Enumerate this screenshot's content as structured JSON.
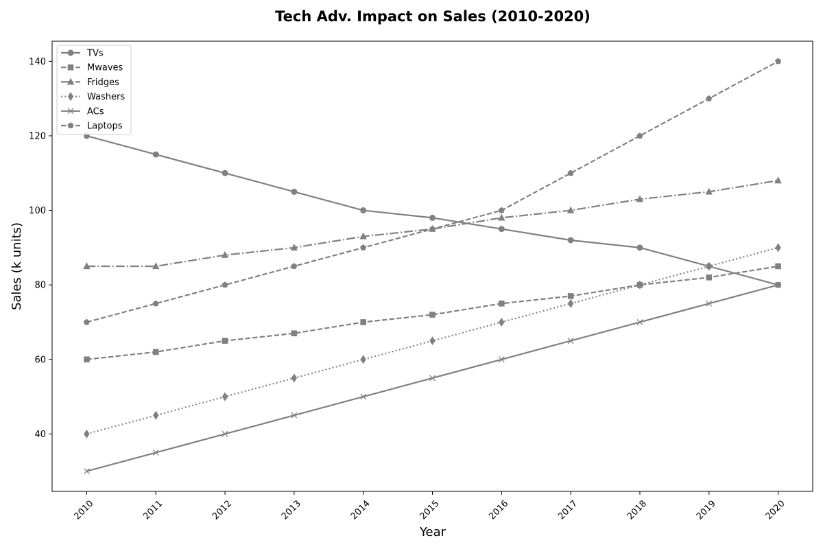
{
  "chart_data": {
    "type": "line",
    "title": "Tech Adv. Impact on Sales (2010-2020)",
    "xlabel": "Year",
    "ylabel": "Sales (k units)",
    "x": [
      2010,
      2011,
      2012,
      2013,
      2014,
      2015,
      2016,
      2017,
      2018,
      2019,
      2020
    ],
    "xlim": [
      2009.5,
      2020.5
    ],
    "ylim": [
      24.6,
      145.4
    ],
    "yticks": [
      40,
      60,
      80,
      100,
      120,
      140
    ],
    "grid": false,
    "legend_position": "top-left",
    "series": [
      {
        "name": "TVs",
        "values": [
          120,
          115,
          110,
          105,
          100,
          98,
          95,
          92,
          90,
          85,
          80
        ],
        "color": "#808080",
        "linestyle": "solid",
        "marker": "circle"
      },
      {
        "name": "Mwaves",
        "values": [
          60,
          62,
          65,
          67,
          70,
          72,
          75,
          77,
          80,
          82,
          85
        ],
        "color": "#808080",
        "linestyle": "dashed",
        "marker": "square"
      },
      {
        "name": "Fridges",
        "values": [
          85,
          85,
          88,
          90,
          93,
          95,
          98,
          100,
          103,
          105,
          108
        ],
        "color": "#808080",
        "linestyle": "dashdot",
        "marker": "triangle"
      },
      {
        "name": "Washers",
        "values": [
          40,
          45,
          50,
          55,
          60,
          65,
          70,
          75,
          80,
          85,
          90
        ],
        "color": "#808080",
        "linestyle": "dotted",
        "marker": "diamond"
      },
      {
        "name": "ACs",
        "values": [
          30,
          35,
          40,
          45,
          50,
          55,
          60,
          65,
          70,
          75,
          80
        ],
        "color": "#808080",
        "linestyle": "solid",
        "marker": "x"
      },
      {
        "name": "Laptops",
        "values": [
          70,
          75,
          80,
          85,
          90,
          95,
          100,
          110,
          120,
          130,
          140
        ],
        "color": "#808080",
        "linestyle": "dashed",
        "marker": "pentagon"
      }
    ]
  }
}
